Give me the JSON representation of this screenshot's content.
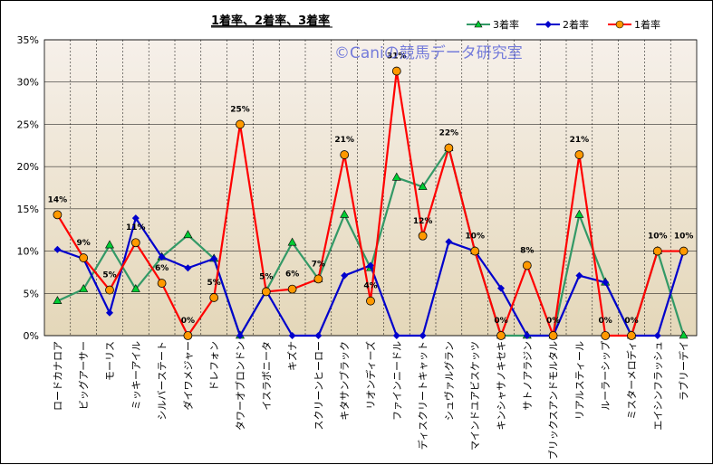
{
  "chart_data": {
    "type": "line",
    "title": "1着率、2着率、3着率",
    "watermark": "©Caniの競馬データ研究室",
    "ylim": [
      0,
      35
    ],
    "yticks": [
      "0%",
      "5%",
      "10%",
      "15%",
      "20%",
      "25%",
      "30%",
      "35%"
    ],
    "grid": true,
    "legend_position": "top-right",
    "categories": [
      "ロードカナロア",
      "ビッグアーサー",
      "モーリス",
      "ミッキーアイル",
      "シルバーステート",
      "ダイワメジャー",
      "ドレフォン",
      "タワーオブロンドン",
      "イスラボニータ",
      "キズナ",
      "スクリーンヒーロー",
      "キタサンブラック",
      "リオンディーズ",
      "ファインニードル",
      "ディスクリートキャット",
      "シュヴァルグラン",
      "マインドユアビスケッツ",
      "キンシャサノキセキ",
      "サトノアラジン",
      "ブリックスアンドモルタル",
      "リアルスティール",
      "ルーラーシップ",
      "ミスターメロディ",
      "エイシンフラッシュ",
      "ラブリーデイ"
    ],
    "series": [
      {
        "name": "3着率",
        "color": "#339966",
        "marker": "triangle",
        "marker_color": "#00cc33",
        "values": [
          4.1,
          5.5,
          10.7,
          5.5,
          9.3,
          11.9,
          9.1,
          0,
          5.3,
          11.0,
          6.7,
          14.3,
          8.0,
          18.7,
          17.6,
          22.2,
          10.0,
          0,
          0,
          0,
          14.3,
          6.3,
          0,
          10.0,
          0
        ]
      },
      {
        "name": "2着率",
        "color": "#0000cc",
        "marker": "diamond",
        "marker_color": "#0000cc",
        "values": [
          10.2,
          9.1,
          2.7,
          13.9,
          9.3,
          8.0,
          9.1,
          0,
          5.3,
          0,
          0,
          7.1,
          8.3,
          0,
          0,
          11.1,
          10.0,
          5.6,
          0,
          0,
          7.1,
          6.3,
          0,
          0,
          10.0
        ]
      },
      {
        "name": "1着率",
        "color": "#ff0000",
        "marker": "circle",
        "marker_color": "#ff9900",
        "values": [
          14.3,
          9.2,
          5.4,
          11.0,
          6.2,
          0,
          4.5,
          25.0,
          5.2,
          5.5,
          6.7,
          21.4,
          4.1,
          31.3,
          11.8,
          22.2,
          10.0,
          0,
          8.3,
          0,
          21.4,
          0,
          0,
          10.0,
          10.0
        ]
      }
    ],
    "data_labels": {
      "series": "1着率",
      "texts": [
        "14%",
        "9%",
        "5%",
        "11%",
        "6%",
        "0%",
        "5%",
        "25%",
        "5%",
        "6%",
        "7%",
        "21%",
        "4%",
        "31%",
        "12%",
        "22%",
        "10%",
        "0%",
        "8%",
        "0%",
        "21%",
        "0%",
        "0%",
        "10%",
        "10%"
      ]
    }
  }
}
